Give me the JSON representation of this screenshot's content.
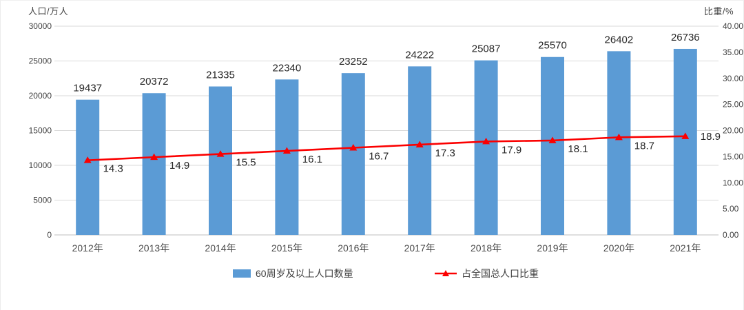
{
  "chart_data": {
    "type": "bar+line",
    "title": "",
    "categories": [
      "2012年",
      "2013年",
      "2014年",
      "2015年",
      "2016年",
      "2017年",
      "2018年",
      "2019年",
      "2020年",
      "2021年"
    ],
    "series": [
      {
        "name": "60周岁及以上人口数量",
        "type": "bar",
        "axis": "left",
        "color": "#5B9BD5",
        "values": [
          19437,
          20372,
          21335,
          22340,
          23252,
          24222,
          25087,
          25570,
          26402,
          26736
        ]
      },
      {
        "name": "占全国总人口比重",
        "type": "line",
        "axis": "right",
        "color": "#FB0000",
        "marker": "triangle-up",
        "values": [
          14.3,
          14.9,
          15.5,
          16.1,
          16.7,
          17.3,
          17.9,
          18.1,
          18.7,
          18.9
        ]
      }
    ],
    "left_axis": {
      "title": "人口/万人",
      "min": 0,
      "max": 30000,
      "step": 5000,
      "tick_labels": [
        "30000",
        "25000",
        "20000",
        "15000",
        "10000",
        "5000",
        "0"
      ]
    },
    "right_axis": {
      "title": "比重/%",
      "min": 0,
      "max": 40,
      "step": 5,
      "tick_labels": [
        "40.00",
        "35.00",
        "30.00",
        "25.00",
        "20.00",
        "15.00",
        "10.00",
        "5.00",
        "0.00"
      ]
    },
    "grid": true,
    "data_labels": true,
    "legend_position": "bottom",
    "colors": {
      "gridline": "#d9d9d9",
      "axis_line": "#bfbfbf",
      "tick_text": "#404040",
      "category_text": "#4a4a4a",
      "value_label_text": "#262626"
    }
  }
}
